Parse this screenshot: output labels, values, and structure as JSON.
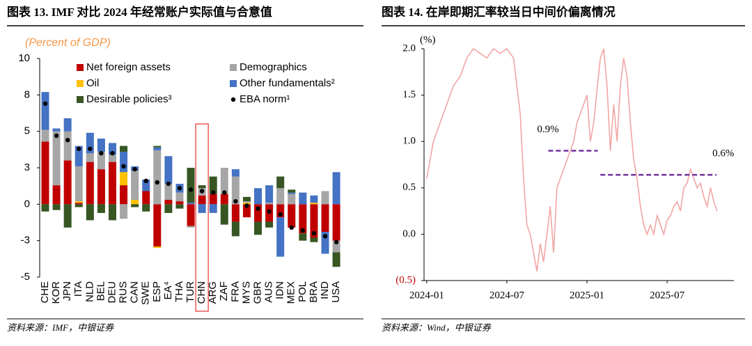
{
  "chart_data": [
    {
      "type": "bar",
      "stacked": true,
      "title": "图表 13. IMF 对比 2024 年经常账户实际值与合意值",
      "subtitle": "(Percent of GDP)",
      "source": "资料来源：IMF，中银证券",
      "categories": [
        "CHE",
        "KOR",
        "JPN",
        "ITA",
        "NLD",
        "BEL",
        "DEU",
        "RUS",
        "CAN",
        "SWE",
        "ESP",
        "EA⁴",
        "THA",
        "TUR",
        "CHN",
        "ARG",
        "ZAF",
        "FRA",
        "MYS",
        "GBR",
        "AUS",
        "IDN",
        "MEX",
        "POL",
        "BRA",
        "IND",
        "USA"
      ],
      "series": [
        {
          "name": "Net foreign assets",
          "color": "#c00000",
          "values": [
            4.3,
            1.3,
            3.0,
            0.1,
            2.9,
            2.4,
            2.9,
            1.3,
            0,
            0.9,
            -2.9,
            0.3,
            0.2,
            -1.5,
            0.6,
            0.7,
            0.7,
            -1.2,
            -0.9,
            -1.2,
            -1.2,
            -0.9,
            -1.6,
            -2.0,
            -2.3,
            -1.9,
            -2.5
          ]
        },
        {
          "name": "Oil",
          "color": "#ffc000",
          "values": [
            0,
            0,
            0,
            0.1,
            0,
            0,
            0,
            0.9,
            0.3,
            0,
            -0.1,
            0,
            0,
            0,
            0,
            0,
            0,
            0,
            0.1,
            0,
            0,
            0,
            0,
            0,
            0.1,
            0,
            0
          ]
        },
        {
          "name": "Demographics",
          "color": "#a6a6a6",
          "values": [
            0.8,
            3.7,
            2.0,
            2.4,
            0.6,
            1.2,
            0.5,
            -1.0,
            2.0,
            0,
            3.7,
            1.1,
            0.6,
            -0.1,
            0.5,
            0,
            1.8,
            1.9,
            0.1,
            0,
            0.1,
            1.1,
            0.7,
            0,
            0,
            0.9,
            -0.8
          ]
        },
        {
          "name": "Other fundamentals²",
          "color": "#4472c4",
          "values": [
            2.6,
            0.2,
            0.9,
            1.4,
            1.4,
            0.9,
            0.8,
            1.4,
            0.3,
            0.8,
            0.2,
            1.9,
            0.6,
            0.1,
            -0.6,
            -0.6,
            0,
            0.5,
            0,
            1.1,
            1.2,
            -2.7,
            0.1,
            0.8,
            0.5,
            -1.5,
            2.2
          ]
        },
        {
          "name": "Desirable policies³",
          "color": "#375623",
          "values": [
            -0.5,
            -0.4,
            -1.6,
            -0.2,
            -1.1,
            -0.6,
            -1.1,
            0.4,
            -0.2,
            -0.5,
            0.1,
            -0.6,
            -0.3,
            2.4,
            0.2,
            1.2,
            -1.4,
            -1.0,
            0.3,
            -0.9,
            -0.4,
            0.8,
            0.2,
            -0.5,
            -0.3,
            0,
            -1.0
          ]
        }
      ],
      "norm": {
        "name": "EBA norm¹",
        "color": "#000000",
        "values": [
          6.9,
          4.7,
          4.4,
          3.8,
          3.8,
          3.5,
          3.5,
          2.6,
          2.4,
          1.6,
          1.5,
          1.4,
          1.1,
          1.0,
          0.9,
          0.8,
          0.8,
          0.2,
          -0.1,
          -0.3,
          -0.5,
          -0.7,
          -1.6,
          -1.8,
          -2.0,
          -2.2,
          -2.6
        ]
      },
      "highlight_index": 14,
      "ylim": [
        -5,
        10
      ],
      "yticks": [
        10,
        {
          "value": 7.5,
          "label": "8"
        },
        5,
        {
          "value": 2.5,
          "label": "3"
        },
        0,
        {
          "value": -2.5,
          "label": "-3"
        },
        -5
      ]
    },
    {
      "type": "line",
      "title": "图表 14. 在岸即期汇率较当日中间价偏离情况",
      "source": "资料来源：Wind，中银证券",
      "y_label": "(%)",
      "color": "#f2a5a5",
      "x": [
        0,
        0.5,
        1,
        1.5,
        2,
        2.5,
        3,
        3.5,
        4,
        4.5,
        5,
        5.5,
        6,
        6.5,
        7,
        7.25,
        7.5,
        7.75,
        8,
        8.25,
        8.5,
        8.75,
        9,
        9.25,
        9.5,
        9.75,
        10,
        10.5,
        11,
        11.25,
        11.5,
        12,
        12.25,
        12.5,
        13,
        13.25,
        13.5,
        13.75,
        14,
        14.25,
        14.5,
        14.75,
        15,
        15.25,
        15.5,
        15.75,
        16,
        16.25,
        16.5,
        16.75,
        17,
        17.25,
        17.5,
        17.75,
        18,
        18.25,
        18.5,
        18.75,
        19,
        19.25,
        19.5,
        19.75,
        20,
        20.25,
        20.5,
        20.75,
        21,
        21.25,
        21.5,
        21.75
      ],
      "values": [
        0.6,
        1.0,
        1.2,
        1.4,
        1.6,
        1.7,
        1.9,
        2.0,
        1.95,
        1.9,
        2.0,
        1.95,
        2.0,
        1.9,
        1.3,
        0.6,
        0.1,
        0.0,
        -0.2,
        -0.4,
        -0.1,
        -0.3,
        0.0,
        0.3,
        -0.2,
        0.5,
        0.6,
        0.8,
        1.0,
        1.2,
        1.3,
        1.5,
        1.0,
        1.2,
        1.9,
        2.0,
        1.6,
        0.9,
        1.4,
        1.0,
        1.6,
        1.9,
        1.7,
        1.2,
        0.8,
        0.6,
        0.3,
        0.1,
        0.0,
        0.1,
        0.0,
        0.2,
        0.1,
        0.0,
        0.15,
        0.2,
        0.3,
        0.35,
        0.25,
        0.5,
        0.55,
        0.7,
        0.6,
        0.5,
        0.55,
        0.4,
        0.3,
        0.5,
        0.35,
        0.25
      ],
      "averages": [
        {
          "label": "0.9%",
          "value": 0.9,
          "x": [
            9.1,
            12.8
          ],
          "color": "#7030a0"
        },
        {
          "label": "0.6%",
          "value": 0.64,
          "x": [
            13,
            21.7
          ],
          "color": "#7030a0"
        }
      ],
      "xlim": [
        -0.2,
        23
      ],
      "xticks": [
        {
          "value": 0,
          "label": "2024-01"
        },
        {
          "value": 6,
          "label": "2024-07"
        },
        {
          "value": 12,
          "label": "2025-01"
        },
        {
          "value": 18,
          "label": "2025-07"
        }
      ],
      "ylim": [
        -0.5,
        2.0
      ],
      "yticks": [
        {
          "value": 2,
          "label": "2.0"
        },
        1.5,
        {
          "value": 1,
          "label": "1.0"
        },
        0.5,
        {
          "value": 0,
          "label": "0.0"
        },
        {
          "value": -0.5,
          "label": "(0.5)",
          "color": "#c00000"
        }
      ]
    }
  ]
}
